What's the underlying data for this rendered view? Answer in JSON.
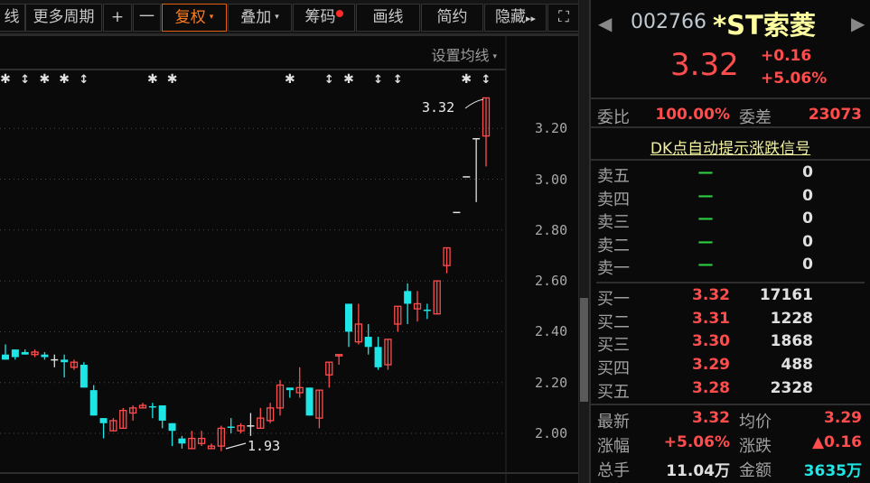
{
  "toolbar": {
    "items": [
      {
        "label": "线"
      },
      {
        "label": "更多周期"
      },
      {
        "label": "+"
      },
      {
        "label": "一"
      },
      {
        "label": "复权",
        "active": true
      },
      {
        "label": "叠加"
      },
      {
        "label": "筹码"
      },
      {
        "label": "画线"
      },
      {
        "label": "简约"
      },
      {
        "label": "隐藏"
      }
    ],
    "caret": "▾",
    "hide_arrows": "▸▸",
    "fullscreen_icon": "⛶"
  },
  "chart": {
    "set_ma_label": "设置均线",
    "high_annotation": "3.32",
    "low_annotation": "1.93",
    "colors": {
      "up": "#ff4d4d",
      "down": "#1ee6e6",
      "flat": "#e0e0e0"
    }
  },
  "chart_data": {
    "type": "candlestick",
    "ylim": [
      1.9,
      3.38
    ],
    "y_ticks": [
      "3.20",
      "3.00",
      "2.80",
      "2.60",
      "2.40",
      "2.20",
      "2.00"
    ],
    "ohlc": [
      [
        2.31,
        2.35,
        2.29,
        2.29
      ],
      [
        2.33,
        2.33,
        2.29,
        2.3
      ],
      [
        2.32,
        2.33,
        2.31,
        2.31
      ],
      [
        2.31,
        2.33,
        2.3,
        2.32
      ],
      [
        2.31,
        2.32,
        2.29,
        2.3
      ],
      [
        2.29,
        2.31,
        2.26,
        2.29
      ],
      [
        2.29,
        2.31,
        2.22,
        2.28
      ],
      [
        2.26,
        2.29,
        2.25,
        2.28
      ],
      [
        2.27,
        2.28,
        2.18,
        2.18
      ],
      [
        2.17,
        2.19,
        2.07,
        2.07
      ],
      [
        2.06,
        2.06,
        1.98,
        2.04
      ],
      [
        2.01,
        2.06,
        2.01,
        2.05
      ],
      [
        2.02,
        2.1,
        2.02,
        2.09
      ],
      [
        2.08,
        2.11,
        2.05,
        2.1
      ],
      [
        2.1,
        2.12,
        2.1,
        2.11
      ],
      [
        2.105,
        2.12,
        2.06,
        2.1
      ],
      [
        2.11,
        2.11,
        2.02,
        2.05
      ],
      [
        2.04,
        2.04,
        1.95,
        2.01
      ],
      [
        1.98,
        1.99,
        1.94,
        1.96
      ],
      [
        1.94,
        2.01,
        1.94,
        1.98
      ],
      [
        1.96,
        2.01,
        1.95,
        1.98
      ],
      [
        1.94,
        1.96,
        1.94,
        1.95
      ],
      [
        1.95,
        2.03,
        1.93,
        2.02
      ],
      [
        2.025,
        2.06,
        2.0,
        2.02
      ],
      [
        2.01,
        2.04,
        2.0,
        2.03
      ],
      [
        2.03,
        2.08,
        1.99,
        2.03
      ],
      [
        2.02,
        2.1,
        2.02,
        2.06
      ],
      [
        2.05,
        2.12,
        2.04,
        2.1
      ],
      [
        2.1,
        2.21,
        2.07,
        2.19
      ],
      [
        2.18,
        2.18,
        2.14,
        2.17
      ],
      [
        2.16,
        2.26,
        2.14,
        2.18
      ],
      [
        2.18,
        2.18,
        2.07,
        2.07
      ],
      [
        2.06,
        2.17,
        2.02,
        2.17
      ],
      [
        2.23,
        2.28,
        2.18,
        2.28
      ],
      [
        2.305,
        2.31,
        2.27,
        2.31
      ],
      [
        2.51,
        2.51,
        2.34,
        2.4
      ],
      [
        2.36,
        2.51,
        2.35,
        2.43
      ],
      [
        2.38,
        2.43,
        2.31,
        2.34
      ],
      [
        2.34,
        2.38,
        2.25,
        2.26
      ],
      [
        2.27,
        2.37,
        2.25,
        2.37
      ],
      [
        2.43,
        2.5,
        2.4,
        2.5
      ],
      [
        2.56,
        2.59,
        2.43,
        2.51
      ],
      [
        2.49,
        2.56,
        2.44,
        2.51
      ],
      [
        2.485,
        2.51,
        2.45,
        2.48
      ],
      [
        2.47,
        2.6,
        2.47,
        2.6
      ],
      [
        2.66,
        2.73,
        2.63,
        2.73
      ],
      [
        2.87,
        2.87,
        2.87,
        2.87
      ],
      [
        3.01,
        3.01,
        3.01,
        3.01
      ],
      [
        3.16,
        3.16,
        2.91,
        3.16
      ],
      [
        3.17,
        3.32,
        3.05,
        3.32
      ]
    ],
    "signals": [
      {
        "i": 0,
        "type": "star"
      },
      {
        "i": 2,
        "type": "updown"
      },
      {
        "i": 4,
        "type": "star"
      },
      {
        "i": 6,
        "type": "star"
      },
      {
        "i": 8,
        "type": "updown"
      },
      {
        "i": 15,
        "type": "star"
      },
      {
        "i": 17,
        "type": "star"
      },
      {
        "i": 29,
        "type": "star"
      },
      {
        "i": 33,
        "type": "updown"
      },
      {
        "i": 35,
        "type": "star"
      },
      {
        "i": 38,
        "type": "updown"
      },
      {
        "i": 40,
        "type": "updown"
      },
      {
        "i": 47,
        "type": "star"
      },
      {
        "i": 49,
        "type": "updown"
      }
    ],
    "signal_glyphs": {
      "star": "✱",
      "updown": "↕"
    }
  },
  "quote": {
    "code": "002766",
    "name": "*ST索菱",
    "price": "3.32",
    "change": "+0.16",
    "change_pct": "+5.06%",
    "prev_icon": "◀",
    "next_icon": "▶",
    "weibi_label": "委比",
    "weibi": "100.00%",
    "weicha_label": "委差",
    "weicha": "23073",
    "dk_link": "DK点自动提示涨跌信号",
    "sell": [
      {
        "label": "卖五",
        "price": "—",
        "vol": "0"
      },
      {
        "label": "卖四",
        "price": "—",
        "vol": "0"
      },
      {
        "label": "卖三",
        "price": "—",
        "vol": "0"
      },
      {
        "label": "卖二",
        "price": "—",
        "vol": "0"
      },
      {
        "label": "卖一",
        "price": "—",
        "vol": "0"
      }
    ],
    "buy": [
      {
        "label": "买一",
        "price": "3.32",
        "vol": "17161"
      },
      {
        "label": "买二",
        "price": "3.31",
        "vol": "1228"
      },
      {
        "label": "买三",
        "price": "3.30",
        "vol": "1868"
      },
      {
        "label": "买四",
        "price": "3.29",
        "vol": "488"
      },
      {
        "label": "买五",
        "price": "3.28",
        "vol": "2328"
      }
    ],
    "stats": [
      {
        "l1": "最新",
        "v1": "3.32",
        "l2": "均价",
        "v2": "3.29"
      },
      {
        "l1": "涨幅",
        "v1": "+5.06%",
        "l2": "涨跌",
        "v2": "▲0.16"
      },
      {
        "l1": "总手",
        "v1": "11.04万",
        "l2": "金额",
        "v2": "3635万"
      }
    ]
  }
}
